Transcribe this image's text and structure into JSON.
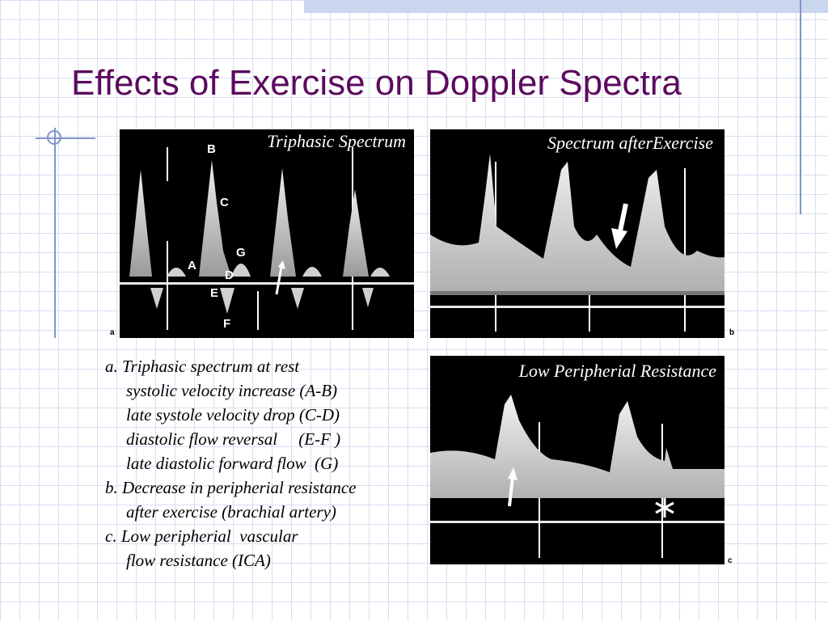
{
  "slide": {
    "title": "Effects of Exercise on Doppler Spectra"
  },
  "panels": {
    "a": {
      "caption": "Triphasic Spectrum",
      "letter": "a",
      "labels": {
        "A": "A",
        "B": "B",
        "C": "C",
        "D": "D",
        "E": "E",
        "F": "F",
        "G": "G"
      }
    },
    "b": {
      "caption": "Spectrum afterExercise",
      "letter": "b"
    },
    "c": {
      "caption": "Low Peripherial Resistance",
      "letter": "c"
    }
  },
  "description": {
    "a_title": "a. Triphasic spectrum at rest",
    "a_line1": "systolic velocity increase (A-B)",
    "a_line2": "late systole velocity drop (C-D)",
    "a_line3": "diastolic flow reversal     (E-F )",
    "a_line4": "late diastolic forward flow  (G)",
    "b_title": "b. Decrease in peripherial resistance",
    "b_line1": "after exercise (brachial artery)",
    "c_title": "c. Low peripherial  vascular",
    "c_line1": "flow resistance (ICA)"
  },
  "colors": {
    "title": "#5c0a5e",
    "grid": "#d6dff0",
    "accent": "#7f95c9"
  }
}
